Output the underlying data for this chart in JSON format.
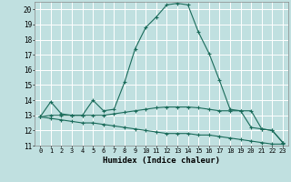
{
  "xlabel": "Humidex (Indice chaleur)",
  "xlim": [
    -0.5,
    23.5
  ],
  "ylim": [
    11,
    20.5
  ],
  "yticks": [
    11,
    12,
    13,
    14,
    15,
    16,
    17,
    18,
    19,
    20
  ],
  "xticks": [
    0,
    1,
    2,
    3,
    4,
    5,
    6,
    7,
    8,
    9,
    10,
    11,
    12,
    13,
    14,
    15,
    16,
    17,
    18,
    19,
    20,
    21,
    22,
    23
  ],
  "bg_color": "#c0e0e0",
  "grid_color": "#ffffff",
  "line_color": "#1a6b5a",
  "lines": [
    {
      "x": [
        0,
        1,
        2,
        3,
        4,
        5,
        6,
        7,
        8,
        9,
        10,
        11,
        12,
        13,
        14,
        15,
        16,
        17,
        18,
        19,
        20,
        21,
        22,
        23
      ],
      "y": [
        12.9,
        13.9,
        13.1,
        13.0,
        13.0,
        14.0,
        13.3,
        13.4,
        15.2,
        17.4,
        18.8,
        19.5,
        20.3,
        20.4,
        20.3,
        18.5,
        17.1,
        15.3,
        13.4,
        13.3,
        12.2,
        12.1,
        12.0,
        11.2
      ]
    },
    {
      "x": [
        0,
        1,
        2,
        3,
        4,
        5,
        6,
        7,
        8,
        9,
        10,
        11,
        12,
        13,
        14,
        15,
        16,
        17,
        18,
        19,
        20,
        21,
        22,
        23
      ],
      "y": [
        12.9,
        13.0,
        13.0,
        13.0,
        13.0,
        13.0,
        13.0,
        13.1,
        13.2,
        13.3,
        13.4,
        13.5,
        13.55,
        13.55,
        13.55,
        13.5,
        13.4,
        13.3,
        13.3,
        13.3,
        13.3,
        12.1,
        12.0,
        11.2
      ]
    },
    {
      "x": [
        0,
        1,
        2,
        3,
        4,
        5,
        6,
        7,
        8,
        9,
        10,
        11,
        12,
        13,
        14,
        15,
        16,
        17,
        18,
        19,
        20,
        21,
        22,
        23
      ],
      "y": [
        12.9,
        12.8,
        12.7,
        12.6,
        12.5,
        12.5,
        12.4,
        12.3,
        12.2,
        12.1,
        12.0,
        11.9,
        11.8,
        11.8,
        11.8,
        11.7,
        11.7,
        11.6,
        11.5,
        11.4,
        11.3,
        11.2,
        11.1,
        11.1
      ]
    }
  ]
}
